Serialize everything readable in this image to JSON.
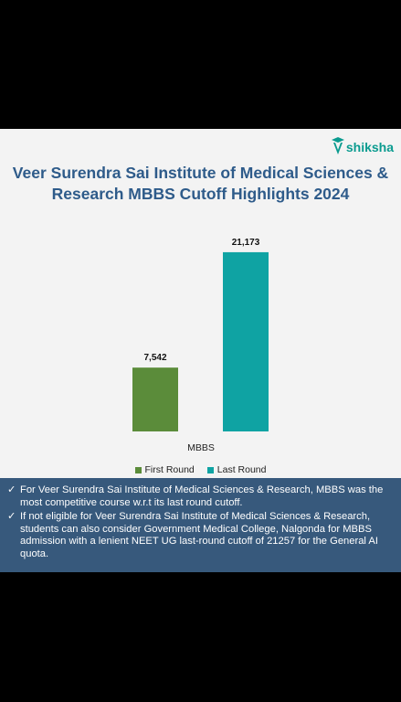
{
  "brand": {
    "name": "shiksha",
    "color": "#0a9b8f"
  },
  "chart_data": {
    "type": "bar",
    "title": "Veer Surendra Sai Institute of Medical Sciences & Research MBBS Cutoff Highlights 2024",
    "categories": [
      "MBBS"
    ],
    "series": [
      {
        "name": "First Round",
        "values": [
          7542
        ],
        "labels": [
          "7,542"
        ],
        "color": "#5b8c3a"
      },
      {
        "name": "Last Round",
        "values": [
          21173
        ],
        "labels": [
          "21,173"
        ],
        "color": "#0fa3a3"
      }
    ],
    "ylim": [
      0,
      23000
    ],
    "grid": false,
    "legend": "bottom"
  },
  "notes": [
    "For Veer Surendra Sai Institute of Medical Sciences & Research, MBBS was the most competitive course w.r.t its last round cutoff.",
    "If not eligible for Veer Surendra Sai Institute of Medical Sciences & Research, students can also consider Government Medical College, Nalgonda for MBBS admission with a lenient NEET UG last-round cutoff of 21257 for the General AI quota."
  ]
}
